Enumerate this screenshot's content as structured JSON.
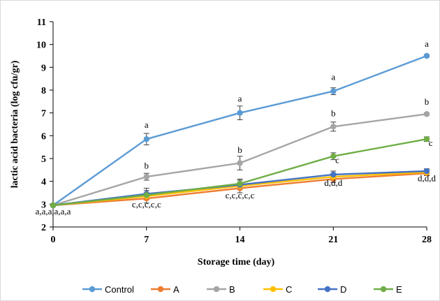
{
  "colors": {
    "Control": "#5B9BD5",
    "A": "#ED7D31",
    "B": "#A5A5A5",
    "C": "#FFC000",
    "D": "#4472C4",
    "E": "#70AD47",
    "axis": "#000000",
    "errorbar": "#404040",
    "frame": "#d9d9d9"
  },
  "chart_data": {
    "type": "line",
    "title": "",
    "xlabel": "Storage time (day)",
    "ylabel": "lactic acid bacteria (log cfu/gr)",
    "x": [
      0,
      7,
      14,
      21,
      28
    ],
    "xlim": [
      0,
      28
    ],
    "ylim": [
      2,
      11
    ],
    "yticks": [
      2,
      3,
      4,
      5,
      6,
      7,
      8,
      9,
      10,
      11
    ],
    "grid": false,
    "legend_position": "bottom",
    "series": [
      {
        "name": "Control",
        "values": [
          2.95,
          5.85,
          7.0,
          7.95,
          9.5
        ],
        "errors": [
          0.05,
          0.25,
          0.3,
          0.15,
          0.05
        ]
      },
      {
        "name": "A",
        "values": [
          2.95,
          3.25,
          3.7,
          4.1,
          4.35
        ],
        "errors": [
          0.05,
          0.2,
          0.2,
          0.15,
          0.1
        ]
      },
      {
        "name": "B",
        "values": [
          2.95,
          4.2,
          4.8,
          6.4,
          6.95
        ],
        "errors": [
          0.05,
          0.15,
          0.3,
          0.2,
          0.05
        ]
      },
      {
        "name": "C",
        "values": [
          2.95,
          3.35,
          3.8,
          4.2,
          4.4
        ],
        "errors": [
          0.05,
          0.15,
          0.15,
          0.15,
          0.1
        ]
      },
      {
        "name": "D",
        "values": [
          2.95,
          3.45,
          3.85,
          4.3,
          4.45
        ],
        "errors": [
          0.05,
          0.25,
          0.2,
          0.15,
          0.1
        ]
      },
      {
        "name": "E",
        "values": [
          2.95,
          3.4,
          3.9,
          5.1,
          5.85
        ],
        "errors": [
          0.05,
          0.2,
          0.2,
          0.15,
          0.1
        ]
      }
    ],
    "annotations": [
      {
        "text": "a,a,a,a,a,a",
        "x": 0,
        "y": 2.55
      },
      {
        "text": "a",
        "x": 7,
        "y": 6.35
      },
      {
        "text": "b",
        "x": 7,
        "y": 4.55
      },
      {
        "text": "c,c,c,c,c",
        "x": 7,
        "y": 2.85
      },
      {
        "text": "a",
        "x": 14,
        "y": 7.5
      },
      {
        "text": "b",
        "x": 14,
        "y": 5.25
      },
      {
        "text": "c,c,c,c,c",
        "x": 14,
        "y": 3.25
      },
      {
        "text": "a",
        "x": 21,
        "y": 8.45
      },
      {
        "text": "b",
        "x": 21,
        "y": 6.85
      },
      {
        "text": "c",
        "x": 21.3,
        "y": 4.8
      },
      {
        "text": "d,d,d",
        "x": 21,
        "y": 3.8
      },
      {
        "text": "a",
        "x": 28,
        "y": 9.9
      },
      {
        "text": "b",
        "x": 28,
        "y": 7.35
      },
      {
        "text": "c",
        "x": 28.3,
        "y": 5.55
      },
      {
        "text": "d,d,d",
        "x": 28,
        "y": 4.0
      }
    ]
  }
}
